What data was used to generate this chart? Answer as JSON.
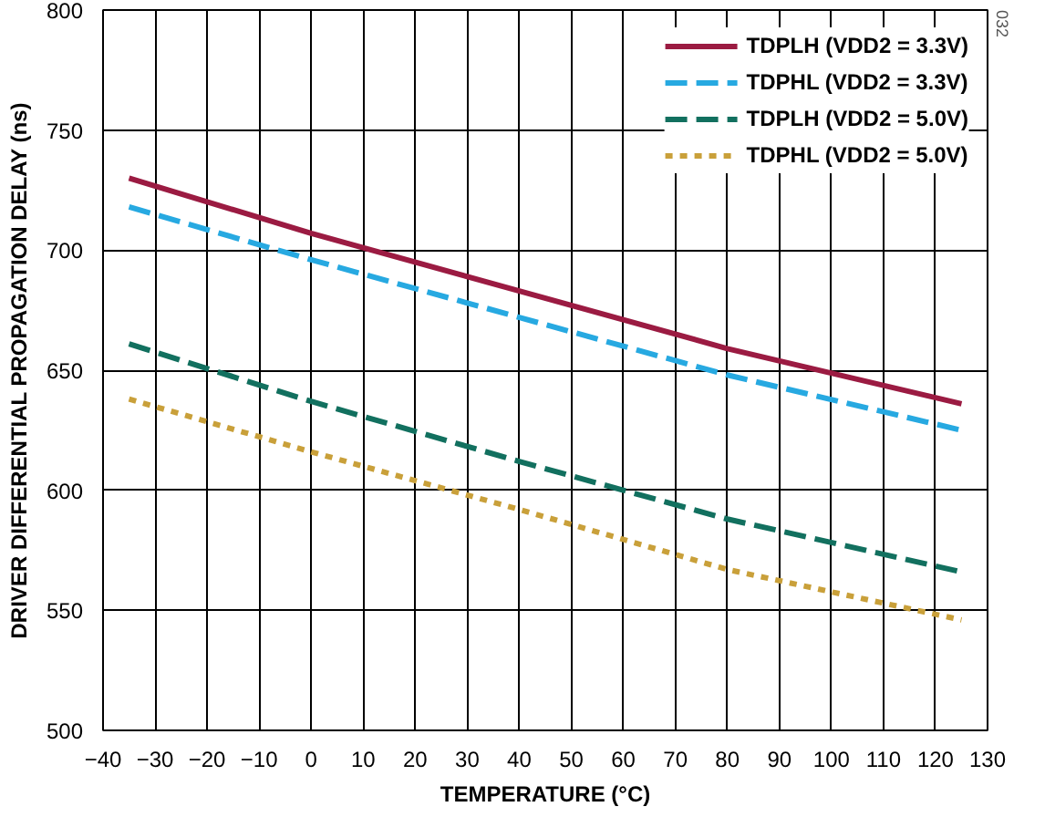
{
  "chart_data": {
    "type": "line",
    "xlabel": "TEMPERATURE (°C)",
    "ylabel": "DRIVER DIFFERENTIAL PROPAGATION DELAY (ns)",
    "x": [
      -35,
      0,
      40,
      80,
      125
    ],
    "series": [
      {
        "name": "TDPLH (VDD2 = 3.3V)",
        "color": "#9b1b42",
        "values": [
          730,
          707,
          683,
          659,
          636
        ],
        "line_style": "solid"
      },
      {
        "name": "TDPHL (VDD2 = 3.3V)",
        "color": "#27a9e1",
        "values": [
          718,
          696,
          672,
          648,
          625
        ],
        "line_style": "dashed"
      },
      {
        "name": "TDPLH (VDD2 = 5.0V)",
        "color": "#12705f",
        "values": [
          661,
          637,
          612,
          588,
          566
        ],
        "line_style": "dashed"
      },
      {
        "name": "TDPHL (VDD2 = 5.0V)",
        "color": "#c9a03a",
        "values": [
          638,
          616,
          592,
          567,
          546
        ],
        "line_style": "dotted"
      }
    ],
    "xlim": [
      -40,
      130
    ],
    "xticks": [
      -40,
      -30,
      -20,
      -10,
      0,
      10,
      20,
      30,
      40,
      50,
      60,
      70,
      80,
      90,
      100,
      110,
      120,
      130
    ],
    "ylim": [
      500,
      800
    ],
    "yticks": [
      500,
      550,
      600,
      650,
      700,
      750,
      800
    ],
    "grid": true,
    "legend": "top right",
    "marker": "none",
    "annotations": [
      "032"
    ]
  }
}
